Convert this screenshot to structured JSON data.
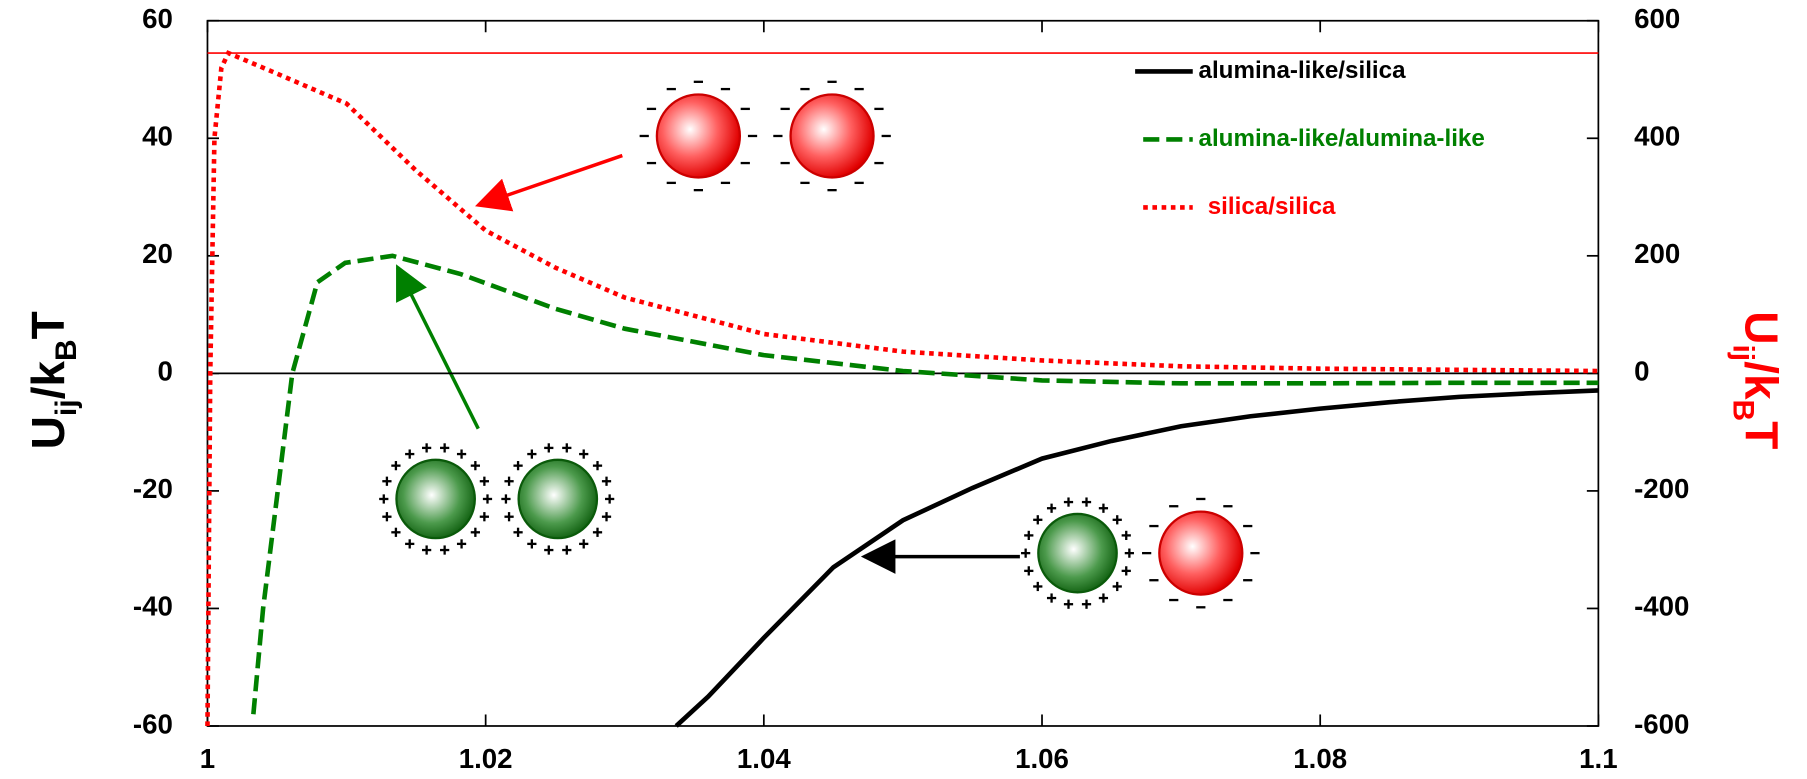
{
  "chart_data": {
    "type": "line",
    "ylabel": [
      "U",
      "ij",
      "/k",
      "B",
      "T"
    ],
    "y2label": [
      "U",
      "ij",
      "/k",
      "B",
      "T"
    ],
    "y2label_color": "#ff0000",
    "xlim": [
      1,
      1.1
    ],
    "xticks": [
      1,
      1.02,
      1.04,
      1.06,
      1.08,
      1.1
    ],
    "ylim": [
      -60,
      60
    ],
    "yticks": [
      -60,
      -40,
      -20,
      0,
      20,
      40,
      60
    ],
    "y2lim": [
      -600,
      600
    ],
    "y2ticks": [
      -600,
      -400,
      -200,
      0,
      200,
      400,
      600
    ],
    "reference_lines": [
      {
        "axis": "y",
        "value": 0,
        "color": "#000000"
      },
      {
        "axis": "y2",
        "value": 545,
        "color": "#ff0000"
      }
    ],
    "series": [
      {
        "name": "alumina-like/silica",
        "color": "#000000",
        "style": "solid",
        "axis": "y",
        "x": [
          1.0337,
          1.036,
          1.04,
          1.045,
          1.05,
          1.055,
          1.06,
          1.065,
          1.07,
          1.075,
          1.08,
          1.085,
          1.09,
          1.095,
          1.1
        ],
        "values": [
          -60,
          -55,
          -45,
          -33,
          -25,
          -19.5,
          -14.5,
          -11.5,
          -9,
          -7.3,
          -6,
          -4.9,
          -4,
          -3.4,
          -2.9
        ]
      },
      {
        "name": "alumina-like/alumina-like",
        "color": "#008000",
        "style": "dashed",
        "axis": "y",
        "x": [
          1.0033,
          1.004,
          1.005,
          1.0061,
          1.0079,
          1.0099,
          1.0133,
          1.0182,
          1.025,
          1.03,
          1.04,
          1.05,
          1.06,
          1.07,
          1.08,
          1.09,
          1.1
        ],
        "values": [
          -58,
          -40,
          -21,
          0,
          15.5,
          18.8,
          20,
          16.9,
          11,
          7.6,
          3.1,
          0.4,
          -1.2,
          -1.7,
          -1.7,
          -1.6,
          -1.6
        ]
      },
      {
        "name": "silica/silica",
        "color": "#ff0000",
        "style": "dotted",
        "axis": "y2",
        "x": [
          1,
          1.0002,
          1.0005,
          1.001,
          1.0015,
          1.005,
          1.01,
          1.015,
          1.02,
          1.025,
          1.03,
          1.04,
          1.05,
          1.06,
          1.07,
          1.08,
          1.09,
          1.1
        ],
        "values": [
          -600,
          0,
          400,
          520,
          545,
          510,
          459,
          345,
          243,
          180,
          129,
          67,
          37,
          22,
          12,
          8,
          6,
          4
        ]
      }
    ]
  }
}
